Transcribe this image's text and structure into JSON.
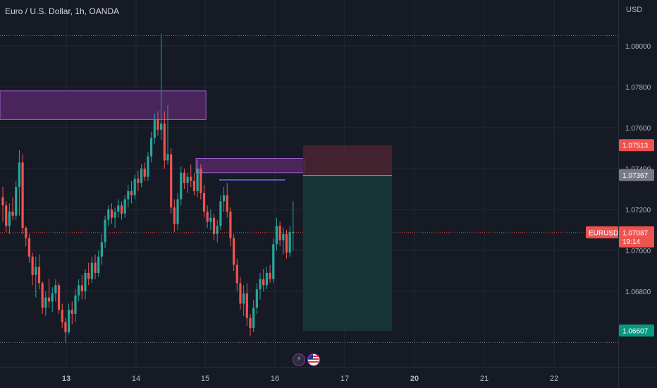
{
  "header": {
    "title": "Euro / U.S. Dollar, 1h, OANDA",
    "currency": "USD"
  },
  "colors": {
    "background": "#161a25",
    "grid": "#242835",
    "up": "#26a69a",
    "down": "#ef5350",
    "zone_fill": "#5b2a6e",
    "zone_stroke": "#9c5fd1",
    "blue_line": "#5c7cfa",
    "stop_fill": "#4a2530",
    "target_fill": "#17383a"
  },
  "chart_data": {
    "type": "candlestick",
    "symbol": "EURUSD",
    "timeframe": "1h",
    "y_ticks": [
      1.068,
      1.07,
      1.072,
      1.074,
      1.076,
      1.078,
      1.08
    ],
    "y_tick_labels": [
      "1.06800",
      "1.07000",
      "1.07200",
      "1.07400",
      "1.07600",
      "1.07800",
      "1.08000"
    ],
    "ylim": [
      1.0646,
      1.0816
    ],
    "x_ticks": [
      "13",
      "14",
      "15",
      "16",
      "17",
      "20",
      "21",
      "22"
    ],
    "grid": true,
    "price_labels": {
      "stop": "1.07513",
      "entry": "1.07367",
      "current_symbol": "EURUSD",
      "current": "1.07087",
      "countdown": "19:14",
      "target": "1.06607"
    },
    "levels": {
      "top_dotted": 1.0805,
      "bottom_dotted": 1.0655,
      "current": 1.07087
    },
    "zones": [
      {
        "from_candle": 0,
        "to_candle": 62,
        "top": 1.0778,
        "bottom": 1.0764
      },
      {
        "from_candle": 59,
        "to_candle": 92,
        "top": 1.0745,
        "bottom": 1.0738
      }
    ],
    "blue_line": {
      "from_candle": 66,
      "to_candle": 86,
      "price": 1.07345
    },
    "position": {
      "from_candle": 85,
      "to_candle": 112,
      "entry": 1.07367,
      "stop": 1.07513,
      "target": 1.06607
    },
    "candles": [
      [
        1.0726,
        1.0731,
        1.0714,
        1.0722
      ],
      [
        1.0722,
        1.0724,
        1.0709,
        1.0712
      ],
      [
        1.0712,
        1.0723,
        1.0708,
        1.0719
      ],
      [
        1.0719,
        1.0726,
        1.0715,
        1.0717
      ],
      [
        1.0717,
        1.0734,
        1.0715,
        1.0731
      ],
      [
        1.0731,
        1.0749,
        1.0717,
        1.0743
      ],
      [
        1.0743,
        1.0747,
        1.0708,
        1.0711
      ],
      [
        1.0711,
        1.0712,
        1.0702,
        1.0706
      ],
      [
        1.0706,
        1.0708,
        1.0694,
        1.0697
      ],
      [
        1.0697,
        1.0699,
        1.0683,
        1.0688
      ],
      [
        1.0688,
        1.0697,
        1.0677,
        1.0692
      ],
      [
        1.0692,
        1.0698,
        1.0681,
        1.0684
      ],
      [
        1.0684,
        1.0685,
        1.0669,
        1.0672
      ],
      [
        1.0672,
        1.068,
        1.0668,
        1.0677
      ],
      [
        1.0677,
        1.0686,
        1.0672,
        1.0675
      ],
      [
        1.0675,
        1.0682,
        1.067,
        1.0679
      ],
      [
        1.0679,
        1.0686,
        1.0675,
        1.0683
      ],
      [
        1.0683,
        1.0684,
        1.0669,
        1.0671
      ],
      [
        1.0671,
        1.0674,
        1.0662,
        1.0665
      ],
      [
        1.0665,
        1.0667,
        1.0655,
        1.066
      ],
      [
        1.066,
        1.0674,
        1.0659,
        1.0671
      ],
      [
        1.0671,
        1.0675,
        1.0664,
        1.0669
      ],
      [
        1.0669,
        1.0681,
        1.0665,
        1.0678
      ],
      [
        1.0678,
        1.0686,
        1.0675,
        1.0683
      ],
      [
        1.0683,
        1.0688,
        1.0676,
        1.068
      ],
      [
        1.068,
        1.0691,
        1.0676,
        1.0689
      ],
      [
        1.0689,
        1.0694,
        1.0683,
        1.0686
      ],
      [
        1.0686,
        1.0697,
        1.0684,
        1.0694
      ],
      [
        1.0694,
        1.0698,
        1.0686,
        1.0689
      ],
      [
        1.0689,
        1.07,
        1.0687,
        1.0697
      ],
      [
        1.0697,
        1.0708,
        1.0693,
        1.0704
      ],
      [
        1.0704,
        1.0717,
        1.0701,
        1.0715
      ],
      [
        1.0715,
        1.0722,
        1.0712,
        1.072
      ],
      [
        1.072,
        1.0723,
        1.0713,
        1.0716
      ],
      [
        1.0716,
        1.0721,
        1.0711,
        1.0719
      ],
      [
        1.0719,
        1.0725,
        1.0716,
        1.0722
      ],
      [
        1.0722,
        1.0724,
        1.0715,
        1.0718
      ],
      [
        1.0718,
        1.0727,
        1.0716,
        1.0725
      ],
      [
        1.0725,
        1.0732,
        1.0721,
        1.0729
      ],
      [
        1.0729,
        1.0734,
        1.0723,
        1.0727
      ],
      [
        1.0727,
        1.0737,
        1.0725,
        1.0735
      ],
      [
        1.0735,
        1.0739,
        1.0729,
        1.0733
      ],
      [
        1.0733,
        1.0742,
        1.0731,
        1.074
      ],
      [
        1.074,
        1.0743,
        1.0734,
        1.0736
      ],
      [
        1.0736,
        1.0748,
        1.0734,
        1.0746
      ],
      [
        1.0746,
        1.0758,
        1.0743,
        1.0755
      ],
      [
        1.0755,
        1.0767,
        1.0752,
        1.0764
      ],
      [
        1.0764,
        1.0768,
        1.0756,
        1.0759
      ],
      [
        1.0759,
        1.0806,
        1.0754,
        1.0762
      ],
      [
        1.0762,
        1.0768,
        1.074,
        1.0744
      ],
      [
        1.0744,
        1.0771,
        1.0742,
        1.0747
      ],
      [
        1.0747,
        1.075,
        1.0718,
        1.0721
      ],
      [
        1.0721,
        1.0725,
        1.0709,
        1.0713
      ],
      [
        1.0713,
        1.0728,
        1.071,
        1.0725
      ],
      [
        1.0725,
        1.0741,
        1.0722,
        1.0738
      ],
      [
        1.0738,
        1.074,
        1.073,
        1.0733
      ],
      [
        1.0733,
        1.0738,
        1.0728,
        1.0736
      ],
      [
        1.0736,
        1.0742,
        1.0731,
        1.0734
      ],
      [
        1.0734,
        1.0738,
        1.0727,
        1.0729
      ],
      [
        1.0729,
        1.0744,
        1.0726,
        1.074
      ],
      [
        1.074,
        1.0742,
        1.0725,
        1.0728
      ],
      [
        1.0728,
        1.0732,
        1.0716,
        1.0719
      ],
      [
        1.0719,
        1.0722,
        1.0711,
        1.0714
      ],
      [
        1.0714,
        1.072,
        1.071,
        1.0716
      ],
      [
        1.0716,
        1.0718,
        1.0705,
        1.0708
      ],
      [
        1.0708,
        1.0715,
        1.0704,
        1.0712
      ],
      [
        1.0712,
        1.0727,
        1.071,
        1.0724
      ],
      [
        1.0724,
        1.0731,
        1.0719,
        1.0727
      ],
      [
        1.0727,
        1.0733,
        1.0716,
        1.0719
      ],
      [
        1.0719,
        1.0721,
        1.0702,
        1.0706
      ],
      [
        1.0706,
        1.0708,
        1.069,
        1.0693
      ],
      [
        1.0693,
        1.0696,
        1.068,
        1.0684
      ],
      [
        1.0684,
        1.0687,
        1.0671,
        1.0674
      ],
      [
        1.0674,
        1.0683,
        1.0668,
        1.0679
      ],
      [
        1.0679,
        1.0684,
        1.0663,
        1.0667
      ],
      [
        1.0667,
        1.0669,
        1.0658,
        1.0662
      ],
      [
        1.0662,
        1.0676,
        1.066,
        1.0672
      ],
      [
        1.0672,
        1.0684,
        1.0669,
        1.0681
      ],
      [
        1.0681,
        1.0689,
        1.0676,
        1.0686
      ],
      [
        1.0686,
        1.0691,
        1.068,
        1.0683
      ],
      [
        1.0683,
        1.0692,
        1.0681,
        1.0689
      ],
      [
        1.0689,
        1.0693,
        1.0684,
        1.0686
      ],
      [
        1.0686,
        1.0706,
        1.0684,
        1.0703
      ],
      [
        1.0703,
        1.0716,
        1.07,
        1.0712
      ],
      [
        1.0712,
        1.0714,
        1.0702,
        1.0705
      ],
      [
        1.0705,
        1.0711,
        1.0698,
        1.0708
      ],
      [
        1.0708,
        1.071,
        1.0696,
        1.0699
      ],
      [
        1.0699,
        1.0712,
        1.0697,
        1.0709
      ],
      [
        1.0709,
        1.0724,
        1.07,
        1.0709
      ]
    ]
  }
}
